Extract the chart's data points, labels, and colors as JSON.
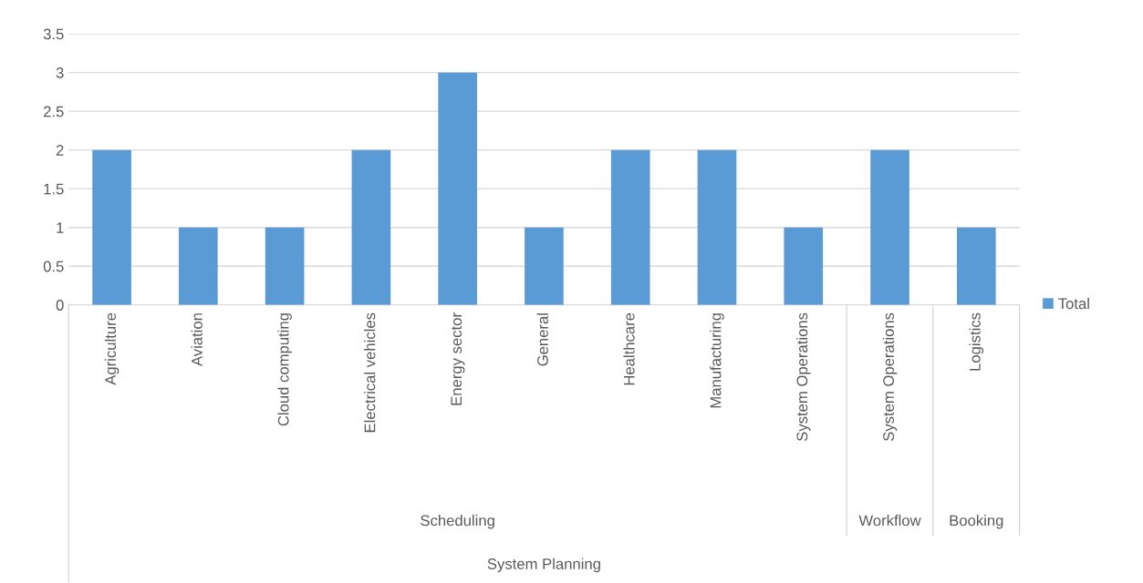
{
  "chart_data": {
    "type": "bar",
    "categories": [
      "Agriculture",
      "Aviation",
      "Cloud computing",
      "Electrical vehicles",
      "Energy sector",
      "General",
      "Healthcare",
      "Manufacturing",
      "System Operations",
      "System Operations",
      "Logistics"
    ],
    "series": [
      {
        "name": "Total",
        "color": "#5b9bd5",
        "values": [
          2,
          1,
          1,
          2,
          3,
          1,
          2,
          2,
          1,
          2,
          1
        ]
      }
    ],
    "ylim": [
      0,
      3.5
    ],
    "yticks": [
      0,
      0.5,
      1,
      1.5,
      2,
      2.5,
      3,
      3.5
    ],
    "grid": "y",
    "legend": "right",
    "annotations": [
      "Scheduling",
      "Workflow",
      "Booking",
      "System Planning"
    ]
  }
}
